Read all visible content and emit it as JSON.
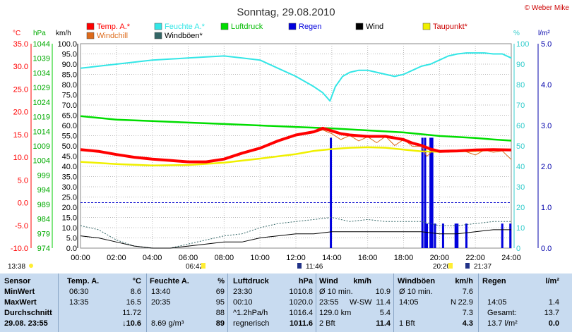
{
  "title": "Sonntag, 29.08.2010",
  "copyright": "© Weber Mike",
  "colors": {
    "temp": "#ff0000",
    "humidity": "#33e6e6",
    "pressure": "#00dd00",
    "rain": "#0000dd",
    "wind": "#000000",
    "dewpoint": "#f0f000",
    "windchill": "#dd6a1a",
    "gusts": "#336666"
  },
  "legend": [
    {
      "label": "Temp. A.*",
      "color": "#ff0000",
      "col": 0,
      "row": 0,
      "text_color": "#ff0000"
    },
    {
      "label": "Feuchte A.*",
      "color": "#33e6e6",
      "col": 1,
      "row": 0,
      "text_color": "#33e6e6"
    },
    {
      "label": "Luftdruck",
      "color": "#00dd00",
      "col": 2,
      "row": 0,
      "text_color": "#00bb00"
    },
    {
      "label": "Regen",
      "color": "#0000dd",
      "col": 3,
      "row": 0,
      "text_color": "#0000dd"
    },
    {
      "label": "Wind",
      "color": "#000000",
      "col": 4,
      "row": 0,
      "text_color": "#000000"
    },
    {
      "label": "Taupunkt*",
      "color": "#f0f000",
      "col": 5,
      "row": 0,
      "text_color": "#cc0000"
    },
    {
      "label": "Windchill",
      "color": "#dd6a1a",
      "col": 0,
      "row": 1,
      "text_color": "#dd6a1a"
    },
    {
      "label": "Windböen*",
      "color": "#336666",
      "col": 1,
      "row": 1,
      "text_color": "#000000"
    }
  ],
  "axis_units": {
    "temp": "°C",
    "pressure": "hPa",
    "wind": "km/h",
    "humidity": "%",
    "rain": "l/m²"
  },
  "chart_data": {
    "type": "line",
    "x_ticks": [
      "00:00",
      "02:00",
      "04:00",
      "06:00",
      "08:00",
      "10:00",
      "12:00",
      "14:00",
      "16:00",
      "18:00",
      "20:00",
      "22:00",
      "24:00"
    ],
    "temp_ticks": [
      "35.0",
      "30.0",
      "25.0",
      "20.0",
      "15.0",
      "10.0",
      "5.0",
      "0.0",
      "-5.0",
      "-10.0"
    ],
    "pressure_ticks": [
      "1044",
      "1039",
      "1034",
      "1029",
      "1024",
      "1019",
      "1014",
      "1009",
      "1004",
      "999",
      "994",
      "989",
      "984",
      "979",
      "974"
    ],
    "wind_ticks": [
      "100.0",
      "95.0",
      "90.0",
      "85.0",
      "80.0",
      "75.0",
      "70.0",
      "65.0",
      "60.0",
      "55.0",
      "50.0",
      "45.0",
      "40.0",
      "35.0",
      "30.0",
      "25.0",
      "20.0",
      "15.0",
      "10.0",
      "5.0",
      "0.0"
    ],
    "humidity_ticks": [
      "100",
      "90",
      "80",
      "70",
      "60",
      "50",
      "40",
      "30",
      "20",
      "10",
      "0"
    ],
    "rain_ticks": [
      "5.0",
      "4.0",
      "3.0",
      "2.0",
      "1.0",
      "0.0"
    ],
    "temp_range": [
      -10,
      35
    ],
    "hour_range": [
      0,
      24
    ],
    "series": [
      {
        "name": "Feuchte A.*",
        "axis": "humidity",
        "x": [
          0,
          1,
          2,
          3,
          4,
          5,
          6,
          7,
          8,
          9,
          10,
          11,
          12,
          13,
          13.5,
          13.9,
          14.2,
          14.6,
          15,
          15.5,
          16,
          16.5,
          17,
          17.5,
          18,
          18.5,
          19,
          19.5,
          20,
          20.5,
          21,
          21.5,
          22,
          22.5,
          23,
          23.5,
          24
        ],
        "y": [
          88,
          89,
          90,
          91,
          92,
          92.5,
          93,
          93.5,
          94,
          93,
          92,
          88,
          84,
          79,
          76,
          72,
          79,
          84,
          86,
          87,
          87,
          86,
          85,
          84,
          85,
          87,
          89,
          90,
          92,
          94,
          95,
          95.5,
          95.5,
          95.5,
          95,
          95,
          93
        ]
      },
      {
        "name": "Luftdruck",
        "axis": "pressure",
        "x": [
          0,
          2,
          4,
          6,
          8,
          10,
          12,
          14,
          16,
          18,
          20,
          22,
          23,
          24
        ],
        "y": [
          1019.2,
          1018.0,
          1017.5,
          1017.0,
          1016.5,
          1016.0,
          1015.5,
          1015.0,
          1014.3,
          1013.6,
          1012.4,
          1011.7,
          1011.2,
          1010.8
        ]
      },
      {
        "name": "Temp. A.*",
        "axis": "temp",
        "x": [
          0,
          1,
          2,
          3,
          4,
          5,
          6,
          7,
          8,
          9,
          10,
          11,
          12,
          13,
          13.5,
          14,
          14.5,
          15,
          16,
          17,
          18,
          18.5,
          19,
          19.5,
          20,
          21,
          22,
          23,
          24
        ],
        "y": [
          11.7,
          11.3,
          10.6,
          10.0,
          9.6,
          9.3,
          9.0,
          9.0,
          9.6,
          10.9,
          12.0,
          13.6,
          14.9,
          15.6,
          16.4,
          15.8,
          15.2,
          14.9,
          14.6,
          14.6,
          13.9,
          13.1,
          12.6,
          11.8,
          11.3,
          11.4,
          11.6,
          11.7,
          11.6
        ]
      },
      {
        "name": "Taupunkt*",
        "axis": "temp",
        "x": [
          0,
          2,
          4,
          6,
          8,
          10,
          12,
          13,
          14,
          15,
          16,
          17,
          18,
          19,
          20,
          21,
          22,
          23,
          24
        ],
        "y": [
          9.0,
          8.5,
          8.2,
          8.3,
          8.8,
          9.7,
          10.7,
          11.4,
          11.8,
          12.1,
          12.2,
          12.1,
          11.7,
          11.3,
          11.2,
          11.3,
          11.4,
          11.6,
          11.6
        ]
      },
      {
        "name": "Windchill",
        "axis": "temp",
        "x": [
          10,
          10.5,
          11,
          11.5,
          12,
          12.5,
          13,
          13.5,
          14,
          14.5,
          15,
          15.5,
          16,
          16.5,
          17,
          17.5,
          18,
          18.5,
          19,
          19.3,
          19.6,
          20,
          20.5,
          21,
          21.5,
          22,
          22.5,
          23,
          23.5,
          24
        ],
        "y": [
          12.0,
          12.6,
          13.4,
          14.2,
          14.9,
          15.3,
          15.4,
          16.0,
          15.2,
          13.9,
          14.8,
          13.6,
          14.5,
          13.2,
          14.6,
          12.6,
          13.9,
          12.4,
          12.4,
          10.2,
          11.4,
          11.3,
          11.1,
          11.6,
          11.2,
          10.5,
          11.6,
          11.1,
          11.4,
          9.5
        ]
      },
      {
        "name": "Wind",
        "axis": "wind",
        "x": [
          0,
          1,
          2,
          3,
          4,
          5,
          6,
          7,
          8,
          9,
          10,
          11,
          12,
          13,
          14,
          15,
          16,
          17,
          18,
          19,
          20,
          21,
          22,
          23,
          24
        ],
        "y": [
          6,
          5,
          3,
          1,
          0,
          0,
          1,
          2,
          3,
          3,
          5,
          6,
          7,
          7,
          8,
          8,
          8,
          8,
          8,
          8,
          7,
          7,
          8,
          9,
          9
        ]
      },
      {
        "name": "Windböen*",
        "axis": "wind",
        "x": [
          0,
          1,
          2,
          3,
          4,
          5,
          6,
          7,
          8,
          9,
          10,
          11,
          12,
          13,
          14,
          15,
          16,
          17,
          18,
          19,
          20,
          21,
          22,
          23,
          24
        ],
        "y": [
          11,
          9,
          4,
          1,
          0,
          0,
          2,
          4,
          6,
          7,
          10,
          12,
          13,
          14,
          15,
          13,
          14,
          13,
          13,
          13,
          11,
          11,
          12,
          13,
          13
        ]
      },
      {
        "name": "Regen",
        "axis": "rain",
        "type": "bar",
        "x": [
          13.95,
          19.05,
          19.2,
          19.3,
          19.5,
          19.6,
          19.75,
          20.2,
          20.9,
          21.0,
          21.5,
          23.5,
          23.95
        ],
        "y": [
          2.7,
          2.7,
          2.7,
          0.6,
          2.7,
          2.7,
          0.6,
          0.6,
          0.6,
          0.6,
          0.6,
          0.6,
          0.6
        ]
      }
    ],
    "reference_line": {
      "axis": "temp",
      "value": 0
    }
  },
  "markers": {
    "sunrise_left": "13:38",
    "times": [
      "06:42",
      "11:46",
      "20:20",
      "21:37"
    ]
  },
  "stats": {
    "headers": [
      "Sensor",
      "Temp. A.",
      "°C",
      "Feuchte A.",
      "%",
      "Luftdruck",
      "hPa",
      "Wind",
      "km/h",
      "Windböen",
      "km/h",
      "Regen",
      "l/m²"
    ],
    "rows": [
      {
        "label": "MinWert",
        "temp_time": "06:30",
        "temp": "8.6",
        "hum_time": "13:40",
        "hum": "69",
        "press_time": "23:30",
        "press": "1010.8",
        "wind_time": "Ø 10 min.",
        "wind": "10.9",
        "gust_time": "Ø 10 min.",
        "gust": "7.6",
        "rain_time": "",
        "rain": ""
      },
      {
        "label": "MaxWert",
        "temp_time": "13:35",
        "temp": "16.5",
        "hum_time": "20:35",
        "hum": "95",
        "press_time": "00:10",
        "press": "1020.0",
        "wind_time": "23:55",
        "wind_dir": "W-SW",
        "wind": "11.4",
        "gust_time": "14:05",
        "gust_dir": "N",
        "gust": "22.9",
        "rain_time": "14:05",
        "rain": "1.4"
      },
      {
        "label": "Durchschnitt",
        "temp_time": "",
        "temp": "11.72",
        "hum_time": "",
        "hum": "88",
        "press_time": "^1.2hPa/h",
        "press": "1016.4",
        "wind_time": "129.0 km",
        "wind": "5.4",
        "gust_time": "",
        "gust": "7.3",
        "rain_time": "Gesamt:",
        "rain": "13.7"
      },
      {
        "label": "29.08. 23:55",
        "temp_time": "",
        "temp": "10.6",
        "hum_time": "8.69 g/m³",
        "hum": "89",
        "press_time": "regnerisch",
        "press": "1011.6",
        "wind_time": "2 Bft",
        "wind": "11.4",
        "gust_time": "1 Bft",
        "gust": "4.3",
        "rain_time": "13.7 l/m²",
        "rain": "0.0"
      }
    ]
  }
}
